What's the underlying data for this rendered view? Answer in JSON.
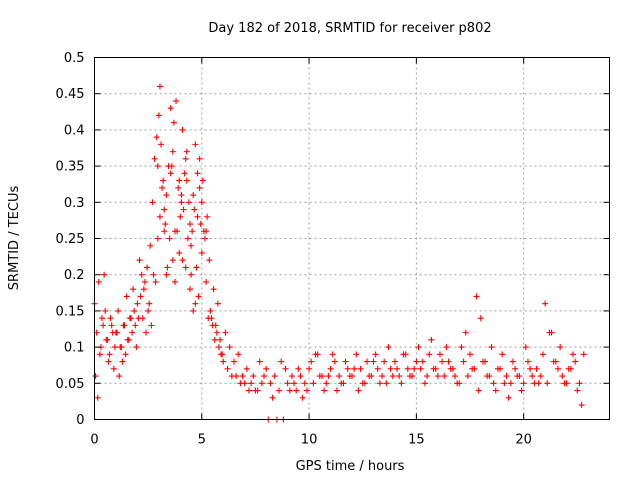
{
  "chart_data": {
    "type": "scatter",
    "title": "Day 182 of 2018, SRMTID for receiver p802",
    "xlabel": "GPS time / hours",
    "ylabel": "SRMTID / TECUs",
    "xlim": [
      0,
      24
    ],
    "ylim": [
      0,
      0.5
    ],
    "x_ticks": [
      0,
      5,
      10,
      15,
      20
    ],
    "x_tick_labels": [
      "0",
      "5",
      "10",
      "15",
      "20"
    ],
    "y_ticks": [
      0,
      0.05,
      0.1,
      0.15,
      0.2,
      0.25,
      0.3,
      0.35,
      0.4,
      0.45,
      0.5
    ],
    "y_tick_labels": [
      "0",
      "0.05",
      "0.1",
      "0.15",
      "0.2",
      "0.25",
      "0.3",
      "0.35",
      "0.4",
      "0.45",
      "0.5"
    ],
    "grid": true,
    "marker": "+",
    "series_color": "#ff0000",
    "series": [
      {
        "name": "SRMTID p802",
        "x": [
          0.0,
          0.1,
          0.2,
          0.3,
          0.4,
          0.5,
          0.6,
          0.7,
          0.8,
          0.9,
          1.0,
          1.1,
          1.2,
          1.3,
          1.4,
          1.5,
          1.6,
          1.7,
          1.8,
          1.9,
          2.0,
          2.1,
          2.2,
          2.3,
          2.4,
          2.5,
          2.6,
          2.7,
          2.8,
          2.9,
          3.0,
          3.1,
          3.2,
          3.3,
          3.4,
          3.5,
          3.6,
          3.7,
          3.8,
          3.9,
          4.0,
          4.1,
          4.2,
          4.3,
          4.4,
          4.5,
          4.6,
          4.7,
          4.8,
          4.9,
          5.0,
          5.1,
          5.2,
          5.3,
          5.4,
          5.5,
          5.6,
          5.7,
          5.8,
          5.9,
          6.0,
          6.2,
          6.4,
          6.6,
          6.8,
          7.0,
          7.2,
          7.4,
          7.6,
          7.8,
          8.0,
          8.1,
          8.2,
          8.4,
          8.5,
          8.6,
          8.8,
          9.0,
          9.2,
          9.4,
          9.6,
          9.8,
          10.0,
          10.2,
          10.4,
          10.6,
          10.8,
          11.0,
          11.2,
          11.4,
          11.6,
          11.8,
          12.0,
          12.2,
          12.4,
          12.6,
          12.8,
          13.0,
          13.2,
          13.4,
          13.6,
          13.8,
          14.0,
          14.2,
          14.4,
          14.6,
          14.8,
          15.0,
          15.2,
          15.4,
          15.6,
          15.8,
          16.0,
          16.2,
          16.4,
          16.6,
          16.8,
          17.0,
          17.2,
          17.4,
          17.5,
          17.6,
          17.8,
          18.0,
          18.2,
          18.4,
          18.6,
          18.8,
          19.0,
          19.2,
          19.4,
          19.6,
          19.8,
          20.0,
          20.2,
          20.4,
          20.6,
          20.7,
          20.8,
          21.0,
          21.2,
          21.4,
          21.6,
          21.8,
          22.0,
          22.2,
          22.4,
          22.6,
          22.8,
          0.05,
          0.15,
          0.25,
          0.35,
          0.45,
          0.55,
          0.65,
          0.75,
          0.85,
          0.95,
          1.05,
          1.15,
          1.25,
          1.35,
          1.45,
          1.55,
          1.65,
          1.75,
          1.85,
          1.95,
          2.05,
          2.15,
          2.25,
          2.35,
          2.45,
          2.55,
          2.65,
          2.75,
          2.85,
          2.95,
          3.05,
          3.15,
          3.25,
          3.35,
          3.45,
          3.55,
          3.65,
          3.75,
          3.85,
          3.95,
          4.05,
          4.15,
          4.25,
          4.35,
          4.45,
          4.55,
          4.65,
          4.75,
          4.85,
          4.95,
          5.05,
          5.15,
          5.25,
          5.35,
          5.45,
          5.55,
          5.65,
          5.75,
          5.85,
          5.95,
          6.1,
          6.3,
          6.5,
          6.7,
          6.9,
          7.1,
          7.3,
          7.5,
          7.7,
          7.9,
          8.3,
          8.7,
          8.9,
          9.1,
          9.3,
          9.5,
          9.7,
          9.9,
          10.1,
          10.3,
          10.5,
          10.7,
          10.9,
          11.1,
          11.3,
          11.5,
          11.7,
          11.9,
          12.1,
          12.3,
          12.5,
          12.7,
          12.9,
          13.1,
          13.3,
          13.5,
          13.7,
          13.9,
          14.1,
          14.3,
          14.5,
          14.7,
          14.9,
          15.1,
          15.3,
          15.5,
          15.7,
          15.9,
          16.1,
          16.3,
          16.5,
          16.7,
          16.9,
          17.1,
          17.3,
          17.7,
          17.9,
          18.1,
          18.3,
          18.5,
          18.7,
          18.9,
          19.1,
          19.3,
          19.5,
          19.7,
          19.9,
          20.1,
          20.3,
          20.5,
          20.9,
          21.1,
          21.3,
          21.5,
          21.7,
          21.9,
          22.1,
          22.3,
          22.5,
          22.7,
          3.05,
          3.25,
          3.55,
          3.75,
          3.95,
          4.1,
          4.3,
          4.5,
          4.7,
          4.9,
          2.95,
          3.35,
          3.65,
          4.05,
          4.25,
          4.45,
          4.6,
          4.8,
          5.0,
          5.2
        ],
        "y": [
          0.16,
          0.12,
          0.19,
          0.1,
          0.13,
          0.15,
          0.11,
          0.09,
          0.13,
          0.07,
          0.12,
          0.15,
          0.1,
          0.08,
          0.13,
          0.17,
          0.11,
          0.14,
          0.18,
          0.13,
          0.16,
          0.22,
          0.2,
          0.18,
          0.12,
          0.15,
          0.24,
          0.3,
          0.36,
          0.39,
          0.42,
          0.38,
          0.33,
          0.27,
          0.21,
          0.25,
          0.35,
          0.41,
          0.44,
          0.32,
          0.28,
          0.22,
          0.34,
          0.37,
          0.3,
          0.24,
          0.31,
          0.38,
          0.34,
          0.36,
          0.3,
          0.26,
          0.19,
          0.14,
          0.15,
          0.13,
          0.11,
          0.12,
          0.1,
          0.09,
          0.08,
          0.07,
          0.06,
          0.06,
          0.05,
          0.05,
          0.04,
          0.06,
          0.04,
          0.05,
          0.07,
          0.0,
          0.05,
          0.06,
          0.0,
          0.04,
          0.0,
          0.05,
          0.06,
          0.04,
          0.06,
          0.05,
          0.07,
          0.05,
          0.09,
          0.06,
          0.05,
          0.07,
          0.08,
          0.06,
          0.05,
          0.07,
          0.06,
          0.09,
          0.07,
          0.05,
          0.06,
          0.08,
          0.07,
          0.06,
          0.05,
          0.07,
          0.08,
          0.06,
          0.09,
          0.07,
          0.06,
          0.08,
          0.07,
          0.05,
          0.09,
          0.07,
          0.06,
          0.08,
          0.1,
          0.07,
          0.06,
          0.05,
          0.08,
          0.06,
          0.09,
          0.07,
          0.17,
          0.14,
          0.08,
          0.06,
          0.05,
          0.07,
          0.09,
          0.06,
          0.05,
          0.07,
          0.06,
          0.05,
          0.08,
          0.06,
          0.07,
          0.05,
          0.06,
          0.16,
          0.12,
          0.08,
          0.07,
          0.06,
          0.05,
          0.07,
          0.08,
          0.05,
          0.09,
          0.06,
          0.03,
          0.09,
          0.14,
          0.2,
          0.11,
          0.08,
          0.14,
          0.12,
          0.1,
          0.12,
          0.06,
          0.1,
          0.13,
          0.09,
          0.11,
          0.14,
          0.12,
          0.15,
          0.1,
          0.14,
          0.17,
          0.14,
          0.19,
          0.21,
          0.16,
          0.13,
          0.2,
          0.19,
          0.25,
          0.28,
          0.32,
          0.26,
          0.31,
          0.35,
          0.34,
          0.22,
          0.19,
          0.26,
          0.33,
          0.3,
          0.29,
          0.36,
          0.25,
          0.18,
          0.26,
          0.29,
          0.21,
          0.17,
          0.27,
          0.33,
          0.25,
          0.28,
          0.22,
          0.14,
          0.18,
          0.13,
          0.16,
          0.11,
          0.09,
          0.12,
          0.1,
          0.08,
          0.09,
          0.06,
          0.07,
          0.05,
          0.04,
          0.08,
          0.06,
          0.03,
          0.08,
          0.07,
          0.04,
          0.05,
          0.07,
          0.03,
          0.04,
          0.08,
          0.09,
          0.06,
          0.04,
          0.06,
          0.09,
          0.04,
          0.05,
          0.08,
          0.06,
          0.07,
          0.04,
          0.05,
          0.08,
          0.06,
          0.09,
          0.05,
          0.08,
          0.1,
          0.06,
          0.07,
          0.05,
          0.09,
          0.06,
          0.07,
          0.1,
          0.08,
          0.06,
          0.11,
          0.07,
          0.09,
          0.06,
          0.08,
          0.07,
          0.05,
          0.1,
          0.12,
          0.07,
          0.04,
          0.08,
          0.06,
          0.1,
          0.04,
          0.07,
          0.05,
          0.03,
          0.08,
          0.06,
          0.04,
          0.1,
          0.07,
          0.05,
          0.09,
          0.05,
          0.12,
          0.08,
          0.1,
          0.05,
          0.07,
          0.09,
          0.04,
          0.02,
          0.46,
          0.29,
          0.43,
          0.26,
          0.23,
          0.4,
          0.33,
          0.2,
          0.16,
          0.32,
          0.35,
          0.2,
          0.37,
          0.31,
          0.21,
          0.27,
          0.15,
          0.28,
          0.23,
          0.26
        ]
      }
    ]
  }
}
